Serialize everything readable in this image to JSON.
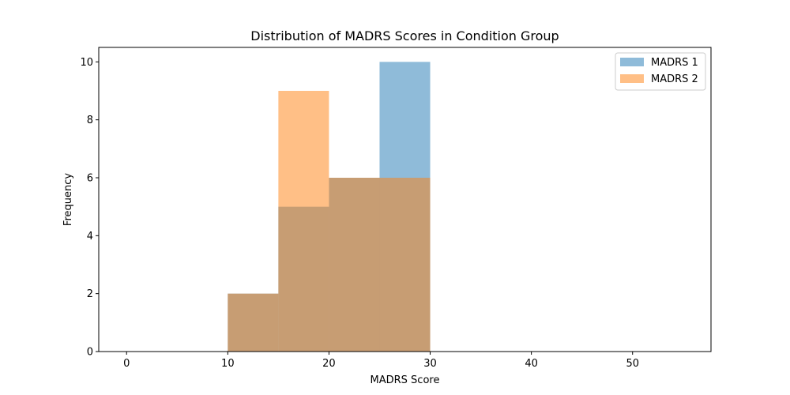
{
  "chart_data": {
    "type": "bar",
    "title": "Distribution of MADRS Scores in Condition Group",
    "xlabel": "MADRS Score",
    "ylabel": "Frequency",
    "xlim": [
      -2.75,
      57.75
    ],
    "ylim": [
      0,
      10.5
    ],
    "xticks": [
      0,
      10,
      20,
      30,
      40,
      50
    ],
    "yticks": [
      0,
      2,
      4,
      6,
      8,
      10
    ],
    "bin_edges": [
      10,
      15,
      20,
      25,
      30
    ],
    "grid": false,
    "legend_position": "top-right",
    "series": [
      {
        "name": "MADRS 1",
        "color": "#1f77b4",
        "alpha": 0.5,
        "values": [
          2,
          5,
          6,
          10
        ]
      },
      {
        "name": "MADRS 2",
        "color": "#ff7f0e",
        "alpha": 0.5,
        "values": [
          2,
          9,
          6,
          6
        ]
      }
    ]
  }
}
